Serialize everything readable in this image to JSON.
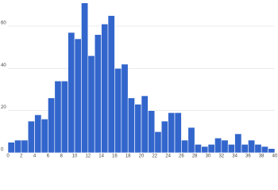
{
  "chart_data": {
    "type": "histogram",
    "bins": [
      0,
      1,
      2,
      3,
      4,
      5,
      6,
      7,
      8,
      9,
      10,
      11,
      12,
      13,
      14,
      15,
      16,
      17,
      18,
      19,
      20,
      21,
      22,
      23,
      24,
      25,
      26,
      27,
      28,
      29,
      30,
      31,
      32,
      33,
      34,
      35,
      36,
      37,
      38,
      39,
      40
    ],
    "values": [
      5,
      6,
      6,
      15,
      18,
      16,
      26,
      34,
      34,
      57,
      54,
      71,
      46,
      56,
      61,
      65,
      40,
      42,
      26,
      23,
      27,
      20,
      10,
      15,
      19,
      19,
      6,
      12,
      4,
      3,
      4,
      7,
      6,
      4,
      9,
      4,
      6,
      4,
      3,
      2
    ],
    "color": "#3366cc",
    "xlim": [
      0,
      40
    ],
    "xticks": [
      0,
      2,
      4,
      6,
      8,
      10,
      12,
      14,
      16,
      18,
      20,
      22,
      24,
      26,
      28,
      30,
      32,
      34,
      36,
      38,
      40
    ],
    "ylim": [
      0,
      72
    ],
    "yticks": [
      0,
      20,
      40,
      60
    ],
    "grid": true
  }
}
